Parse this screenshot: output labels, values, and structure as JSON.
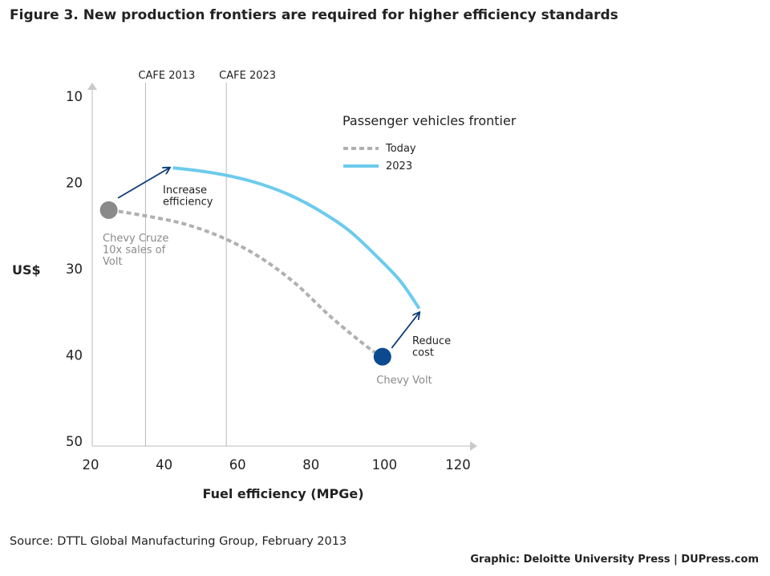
{
  "title": "Figure 3. New production frontiers are required for higher efficiency standards",
  "source": "Source: DTTL Global Manufacturing Group, February 2013",
  "credit": "Graphic: Deloitte University Press  |  DUPress.com",
  "chart_data": {
    "type": "line",
    "xlabel": "Fuel efficiency (MPGe)",
    "ylabel": "US$",
    "xlim": [
      20,
      120
    ],
    "ylim": [
      50,
      10
    ],
    "y_inverted": true,
    "x_ticks": [
      "20",
      "40",
      "60",
      "80",
      "100",
      "120"
    ],
    "y_ticks": [
      "10",
      "20",
      "30",
      "40",
      "50"
    ],
    "reference_lines": [
      {
        "label": "CAFE 2013",
        "x": 34.5
      },
      {
        "label": "CAFE 2023",
        "x": 56.5
      }
    ],
    "legend": {
      "title": "Passenger vehicles frontier",
      "position": "top-right",
      "entries": [
        {
          "label": "Today",
          "color": "#b0b0b0",
          "style": "dashed"
        },
        {
          "label": "2023",
          "color": "#6ccbec",
          "style": "solid"
        }
      ]
    },
    "series": [
      {
        "name": "Today",
        "color": "#b0b0b0",
        "style": "dashed",
        "x": [
          25,
          35,
          45,
          55,
          65,
          75,
          85,
          95,
          99
        ],
        "y": [
          23.2,
          23.9,
          24.8,
          26.3,
          28.5,
          31.6,
          35.6,
          39.1,
          40.2
        ]
      },
      {
        "name": "2023",
        "color": "#6ccbec",
        "style": "solid",
        "x": [
          42,
          50,
          58,
          66,
          74,
          82,
          90,
          98,
          104,
          109
        ],
        "y": [
          18.3,
          18.7,
          19.3,
          20.2,
          21.5,
          23.3,
          25.6,
          28.8,
          31.5,
          34.6
        ]
      }
    ],
    "points": [
      {
        "label": "Chevy Cruze\n10x sales of\nVolt",
        "x": 24.5,
        "y": 23.2,
        "color": "#8a8a8a"
      },
      {
        "label": "Chevy Volt",
        "x": 99,
        "y": 40.2,
        "color": "#0b4a8f"
      }
    ],
    "annotations": [
      {
        "label": "Increase\nefficiency",
        "from": [
          27,
          21.8
        ],
        "to": [
          41,
          18.3
        ]
      },
      {
        "label": "Reduce\ncost",
        "from": [
          101.5,
          39.2
        ],
        "to": [
          109,
          35.1
        ]
      }
    ],
    "grid": false
  }
}
